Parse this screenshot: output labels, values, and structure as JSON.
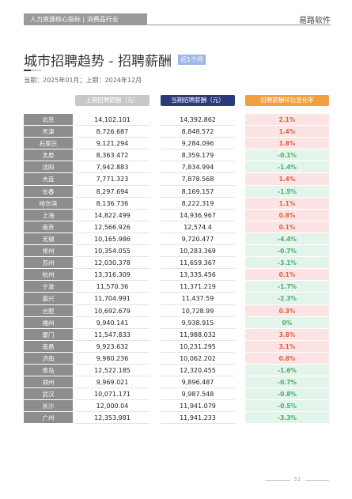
{
  "header": {
    "tab_label": "人力资源核心指标 | 消费品行业",
    "brand": "易路软件"
  },
  "title": {
    "text": "城市招聘趋势 - 招聘薪酬",
    "badge": "近1个月"
  },
  "period": "当期：2025年01月；上期：2024年12月",
  "table": {
    "headers": {
      "prev": "上期招聘薪酬（元）",
      "cur": "当期招聘薪酬（元）",
      "chg": "招聘薪酬环比变化率"
    },
    "rows": [
      {
        "city": "北京",
        "prev": "14,102.101",
        "cur": "14,392.862",
        "chg": "2.1%",
        "dir": "up"
      },
      {
        "city": "天津",
        "prev": "8,726.687",
        "cur": "8,848.572",
        "chg": "1.4%",
        "dir": "up"
      },
      {
        "city": "石家庄",
        "prev": "9,121.294",
        "cur": "9,284.096",
        "chg": "1.8%",
        "dir": "up"
      },
      {
        "city": "太原",
        "prev": "8,363.472",
        "cur": "8,359.179",
        "chg": "-0.1%",
        "dir": "down"
      },
      {
        "city": "沈阳",
        "prev": "7,942.883",
        "cur": "7,834.994",
        "chg": "-1.4%",
        "dir": "down"
      },
      {
        "city": "大连",
        "prev": "7,771.323",
        "cur": "7,878.568",
        "chg": "1.4%",
        "dir": "up"
      },
      {
        "city": "长春",
        "prev": "8,297.694",
        "cur": "8,169.157",
        "chg": "-1.5%",
        "dir": "down"
      },
      {
        "city": "哈尔滨",
        "prev": "8,136.736",
        "cur": "8,222.319",
        "chg": "1.1%",
        "dir": "up"
      },
      {
        "city": "上海",
        "prev": "14,822.499",
        "cur": "14,936.967",
        "chg": "0.8%",
        "dir": "up"
      },
      {
        "city": "南京",
        "prev": "12,566.926",
        "cur": "12,574.4",
        "chg": "0.1%",
        "dir": "up"
      },
      {
        "city": "无锡",
        "prev": "10,165.986",
        "cur": "9,720.477",
        "chg": "-4.4%",
        "dir": "down"
      },
      {
        "city": "常州",
        "prev": "10,354.055",
        "cur": "10,283.369",
        "chg": "-0.7%",
        "dir": "down"
      },
      {
        "city": "苏州",
        "prev": "12,030.378",
        "cur": "11,659.367",
        "chg": "-3.1%",
        "dir": "down"
      },
      {
        "city": "杭州",
        "prev": "13,316.309",
        "cur": "13,335.456",
        "chg": "0.1%",
        "dir": "up"
      },
      {
        "city": "宁波",
        "prev": "11,570.36",
        "cur": "11,371.219",
        "chg": "-1.7%",
        "dir": "down"
      },
      {
        "city": "嘉兴",
        "prev": "11,704.991",
        "cur": "11,437.59",
        "chg": "-2.3%",
        "dir": "down"
      },
      {
        "city": "合肥",
        "prev": "10,692.679",
        "cur": "10,728.99",
        "chg": "0.3%",
        "dir": "up"
      },
      {
        "city": "福州",
        "prev": "9,940.141",
        "cur": "9,938.915",
        "chg": "0%",
        "dir": "zero"
      },
      {
        "city": "厦门",
        "prev": "11,547.833",
        "cur": "11,988.032",
        "chg": "3.8%",
        "dir": "up"
      },
      {
        "city": "南昌",
        "prev": "9,923.632",
        "cur": "10,231.295",
        "chg": "3.1%",
        "dir": "up"
      },
      {
        "city": "济南",
        "prev": "9,980.236",
        "cur": "10,062.202",
        "chg": "0.8%",
        "dir": "up"
      },
      {
        "city": "青岛",
        "prev": "12,522.185",
        "cur": "12,320.455",
        "chg": "-1.6%",
        "dir": "down"
      },
      {
        "city": "郑州",
        "prev": "9,969.021",
        "cur": "9,896.487",
        "chg": "-0.7%",
        "dir": "down"
      },
      {
        "city": "武汉",
        "prev": "10,071.171",
        "cur": "9,987.548",
        "chg": "-0.8%",
        "dir": "down"
      },
      {
        "city": "长沙",
        "prev": "12,000.04",
        "cur": "11,941.079",
        "chg": "-0.5%",
        "dir": "down"
      },
      {
        "city": "广州",
        "prev": "12,353.981",
        "cur": "11,941.233",
        "chg": "-3.3%",
        "dir": "down"
      }
    ]
  },
  "footer": {
    "page": "33"
  },
  "colors": {
    "header_prev": "#c8c8c8",
    "header_cur": "#2d3a7a",
    "header_chg": "#f2a03d",
    "up_bg": "#fce4e4",
    "up_text": "#e0603f",
    "down_bg": "#e3f5ea",
    "down_text": "#4aaa6a"
  }
}
